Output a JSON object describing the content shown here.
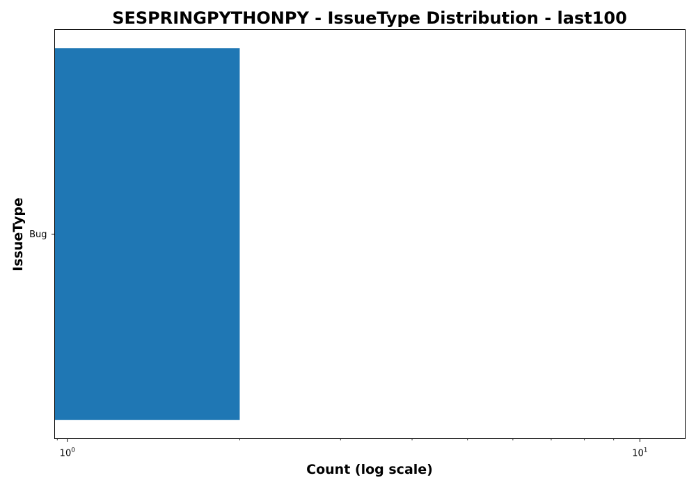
{
  "chart_data": {
    "type": "bar",
    "orientation": "horizontal",
    "title": "SESPRINGPYTHONPY - IssueType Distribution - last100",
    "xlabel": "Count (log scale)",
    "ylabel": "IssueType",
    "xscale": "log",
    "xlim": [
      0.95,
      12.0
    ],
    "categories": [
      "Bug"
    ],
    "values": [
      2
    ],
    "x_ticks": [
      {
        "value": 1,
        "base": "10",
        "exp": "0"
      },
      {
        "value": 10,
        "base": "10",
        "exp": "1"
      }
    ],
    "bar_color": "#1f77b4",
    "grid": false,
    "legend": "none"
  }
}
